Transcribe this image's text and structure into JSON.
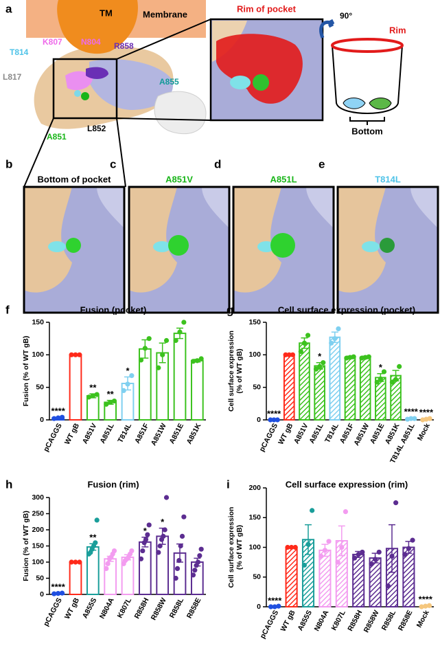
{
  "figure": {
    "panel_a": {
      "label": "a",
      "tm": "TM",
      "membrane": "Membrane",
      "zoom_title": "Rim of pocket",
      "rotation": "90°",
      "rim": "Rim",
      "bottom": "Bottom",
      "residues": [
        {
          "name": "K807",
          "color": "#ee6bea"
        },
        {
          "name": "N804",
          "color": "#ee6bea"
        },
        {
          "name": "R858",
          "color": "#6a2fb5"
        },
        {
          "name": "T814",
          "color": "#4fc3e8"
        },
        {
          "name": "L817",
          "color": "#8a8a8a"
        },
        {
          "name": "A855",
          "color": "#129a98"
        },
        {
          "name": "L852",
          "color": "#000000"
        },
        {
          "name": "A851",
          "color": "#18b518"
        }
      ]
    },
    "structure_panels": [
      {
        "label": "b",
        "title": "Bottom of pocket",
        "color": "#000000"
      },
      {
        "label": "c",
        "title": "A851V",
        "color": "#18b518"
      },
      {
        "label": "d",
        "title": "A851L",
        "color": "#18b518"
      },
      {
        "label": "e",
        "title": "T814L",
        "color": "#4fc3e8"
      }
    ]
  },
  "chart_data": [
    {
      "type": "bar",
      "panel": "f",
      "title": "Fusion (pocket)",
      "ylabel": [
        "Fusion (% of WT gB)"
      ],
      "hatched": false,
      "categories": [
        "pCAGGS",
        "WT gB",
        "A851V",
        "A851L",
        "T814L",
        "A851F",
        "A851W",
        "A851E",
        "A851K"
      ],
      "values": [
        3,
        100,
        37,
        27,
        56,
        109,
        103,
        133,
        91
      ],
      "errors": [
        1,
        0,
        3,
        3,
        10,
        14,
        15,
        8,
        2
      ],
      "points": [
        [
          2,
          3,
          4
        ],
        [
          100,
          100,
          100
        ],
        [
          35,
          37,
          39
        ],
        [
          24,
          27,
          29
        ],
        [
          45,
          55,
          68
        ],
        [
          92,
          110,
          125
        ],
        [
          80,
          100,
          122
        ],
        [
          122,
          135,
          150
        ],
        [
          90,
          91,
          94
        ]
      ],
      "colors": [
        "#1f4fe0",
        "#ff2a1a",
        "#3cc21e",
        "#3cc21e",
        "#7fd0f0",
        "#3cc21e",
        "#3cc21e",
        "#3cc21e",
        "#3cc21e"
      ],
      "significance": [
        "****",
        null,
        "**",
        "**",
        "*",
        null,
        null,
        null,
        null
      ],
      "ylim": [
        0,
        150
      ],
      "yticks": [
        0,
        50,
        100,
        150
      ]
    },
    {
      "type": "bar",
      "panel": "g",
      "title": "Cell surface expression (pocket)",
      "ylabel": [
        "Cell surface expression",
        "(% of WT gB)"
      ],
      "hatched": true,
      "categories": [
        "pCAGGS",
        "WT gB",
        "A851V",
        "A851L",
        "T814L",
        "A851F",
        "A851W",
        "A851E",
        "A851K",
        "T814L A851L",
        "Mock"
      ],
      "values": [
        0,
        100,
        118,
        83,
        127,
        96,
        96,
        65,
        68,
        2,
        1
      ],
      "errors": [
        0,
        0,
        8,
        5,
        8,
        2,
        2,
        6,
        8,
        1,
        1
      ],
      "points": [
        [
          0,
          0,
          0
        ],
        [
          100,
          100,
          100
        ],
        [
          105,
          118,
          130
        ],
        [
          78,
          82,
          88
        ],
        [
          118,
          125,
          140
        ],
        [
          95,
          96,
          97
        ],
        [
          95,
          96,
          97
        ],
        [
          58,
          63,
          74
        ],
        [
          58,
          62,
          82
        ],
        [
          1,
          2,
          2
        ],
        [
          0,
          1,
          2
        ]
      ],
      "colors": [
        "#1f4fe0",
        "#ff2a1a",
        "#3cc21e",
        "#3cc21e",
        "#7fd0f0",
        "#3cc21e",
        "#3cc21e",
        "#3cc21e",
        "#3cc21e",
        "#7fd0f0",
        "#f5c77e"
      ],
      "significance": [
        "****",
        null,
        null,
        "*",
        null,
        null,
        null,
        "*",
        null,
        "****",
        "****"
      ],
      "ylim": [
        0,
        150
      ],
      "yticks": [
        0,
        50,
        100,
        150
      ]
    },
    {
      "type": "bar",
      "panel": "h",
      "title": "Fusion (rim)",
      "ylabel": [
        "Fusion (% of WT gB)"
      ],
      "hatched": false,
      "categories": [
        "pCAGGS",
        "WT gB",
        "A855S",
        "N804A",
        "K807L",
        "R858H",
        "R858W",
        "R858L",
        "R858E"
      ],
      "values": [
        3,
        100,
        147,
        110,
        115,
        162,
        180,
        128,
        100
      ],
      "errors": [
        1,
        0,
        10,
        8,
        8,
        15,
        25,
        28,
        12
      ],
      "points": [
        [
          2,
          3,
          4
        ],
        [
          100,
          100,
          100
        ],
        [
          125,
          130,
          140,
          150,
          160,
          230
        ],
        [
          80,
          95,
          110,
          115,
          125,
          135
        ],
        [
          95,
          105,
          110,
          115,
          125,
          135
        ],
        [
          110,
          135,
          160,
          170,
          185,
          215
        ],
        [
          130,
          150,
          170,
          180,
          200,
          300
        ],
        [
          50,
          80,
          105,
          150,
          180,
          240
        ],
        [
          60,
          75,
          90,
          100,
          120,
          140
        ]
      ],
      "colors": [
        "#1f4fe0",
        "#ff2a1a",
        "#1a9e9a",
        "#f39cf0",
        "#f39cf0",
        "#5c2d91",
        "#5c2d91",
        "#5c2d91",
        "#5c2d91"
      ],
      "significance": [
        "****",
        null,
        "**",
        null,
        null,
        "*",
        "*",
        null,
        null
      ],
      "ylim": [
        0,
        300
      ],
      "yticks": [
        0,
        50,
        100,
        150,
        200,
        250,
        300
      ]
    },
    {
      "type": "bar",
      "panel": "i",
      "title": "Cell surface expression (rim)",
      "ylabel": [
        "Cell surface expression",
        "(% of WT gB)"
      ],
      "hatched": true,
      "categories": [
        "pCAGGS",
        "WT gB",
        "A855S",
        "N804A",
        "K807L",
        "R858H",
        "R858W",
        "R858L",
        "R858E",
        "Mock"
      ],
      "values": [
        0,
        100,
        113,
        95,
        111,
        88,
        82,
        98,
        100,
        1
      ],
      "errors": [
        0,
        0,
        25,
        10,
        25,
        5,
        8,
        40,
        10,
        1
      ],
      "points": [
        [
          0,
          0,
          1
        ],
        [
          100,
          100,
          100
        ],
        [
          70,
          105,
          162
        ],
        [
          85,
          95,
          110
        ],
        [
          75,
          100,
          160
        ],
        [
          82,
          88,
          92
        ],
        [
          72,
          80,
          92
        ],
        [
          35,
          85,
          175
        ],
        [
          88,
          98,
          112
        ],
        [
          0,
          1,
          2
        ]
      ],
      "colors": [
        "#1f4fe0",
        "#ff2a1a",
        "#1a9e9a",
        "#f39cf0",
        "#f39cf0",
        "#5c2d91",
        "#5c2d91",
        "#5c2d91",
        "#5c2d91",
        "#f5c77e"
      ],
      "significance": [
        "****",
        null,
        null,
        null,
        null,
        null,
        null,
        null,
        null,
        "****"
      ],
      "ylim": [
        0,
        200
      ],
      "yticks": [
        0,
        50,
        100,
        150,
        200
      ]
    }
  ]
}
